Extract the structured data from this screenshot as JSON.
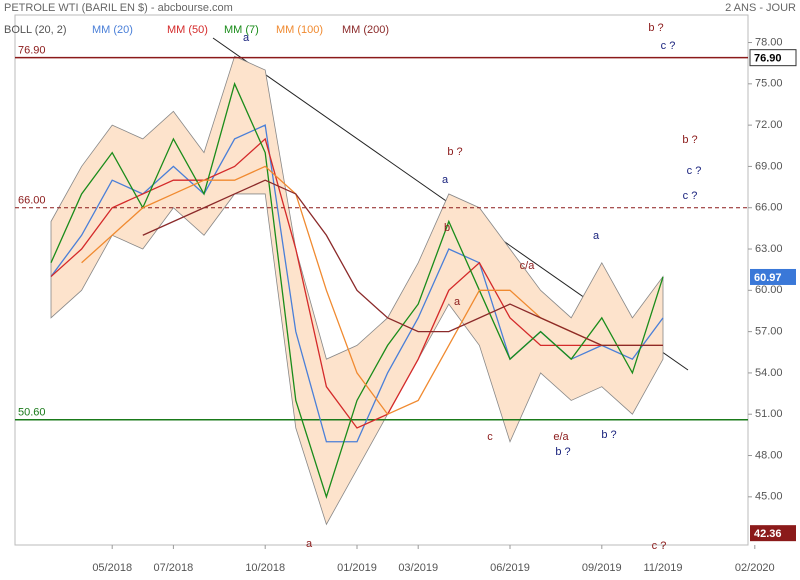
{
  "chart_data": {
    "type": "line",
    "title": "PETROLE WTI (BARIL EN $) - abcbourse.com",
    "subtitle": "2 ANS - JOUR",
    "categories": [
      null,
      null,
      "05/2018",
      null,
      "07/2018",
      null,
      null,
      "10/2018",
      null,
      null,
      "01/2019",
      null,
      "03/2019",
      null,
      null,
      "06/2019",
      null,
      null,
      "09/2019",
      null,
      "11/2019",
      null,
      null,
      "02/2020"
    ],
    "band": {
      "name": "BOLL (20, 2)",
      "color": "#fde3cc",
      "upper": [
        65,
        69,
        72,
        71,
        73,
        70,
        77,
        76,
        63,
        55,
        56,
        58,
        62,
        67,
        66,
        63,
        60,
        58,
        62,
        58,
        61,
        null,
        null,
        null
      ],
      "lower": [
        58,
        60,
        64,
        63,
        66,
        64,
        67,
        67,
        50,
        43,
        47,
        51,
        55,
        59,
        56,
        49,
        54,
        52,
        53,
        51,
        55,
        null,
        null,
        null
      ]
    },
    "series": [
      {
        "name": "MM (20)",
        "color": "#4a7fd8",
        "values": [
          61,
          64,
          68,
          67,
          69,
          67,
          71,
          72,
          57,
          49,
          49,
          54,
          58,
          63,
          62,
          55,
          57,
          55,
          56,
          55,
          58,
          null,
          null,
          null
        ]
      },
      {
        "name": "MM (50)",
        "color": "#d42a2a",
        "values": [
          61,
          63,
          66,
          67,
          68,
          68,
          69,
          71,
          63,
          53,
          50,
          51,
          55,
          60,
          62,
          58,
          56,
          56,
          56,
          56,
          56,
          null,
          null,
          null
        ]
      },
      {
        "name": "MM (7)",
        "color": "#1a8c1a",
        "values": [
          62,
          67,
          70,
          66,
          71,
          67,
          75,
          70,
          52,
          45,
          52,
          56,
          59,
          65,
          60,
          55,
          57,
          55,
          58,
          54,
          60.97,
          null,
          null,
          null
        ]
      },
      {
        "name": "MM (100)",
        "color": "#f08a30",
        "values": [
          null,
          62,
          64,
          66,
          67,
          68,
          68,
          69,
          67,
          60,
          54,
          51,
          52,
          56,
          60,
          60,
          58,
          57,
          56,
          56,
          56,
          null,
          null,
          null
        ]
      },
      {
        "name": "MM (200)",
        "color": "#8b2a2a",
        "values": [
          null,
          null,
          null,
          64,
          65,
          66,
          67,
          68,
          67,
          64,
          60,
          58,
          57,
          57,
          58,
          59,
          58,
          57,
          56,
          56,
          56,
          null,
          null,
          null
        ]
      }
    ],
    "ylim": [
      41.5,
      80
    ],
    "yticks": [
      {
        "value": 45,
        "label": "45.00"
      },
      {
        "value": 48,
        "label": "48.00"
      },
      {
        "value": 51,
        "label": "51.00"
      },
      {
        "value": 54,
        "label": "54.00"
      },
      {
        "value": 57,
        "label": "57.00"
      },
      {
        "value": 60,
        "label": "60.00"
      },
      {
        "value": 63,
        "label": "63.00"
      },
      {
        "value": 66,
        "label": "66.00"
      },
      {
        "value": 69,
        "label": "69.00"
      },
      {
        "value": 72,
        "label": "72.00"
      },
      {
        "value": 75,
        "label": "75.00"
      },
      {
        "value": 78,
        "label": "78.00"
      }
    ],
    "hlines": [
      {
        "value": 76.9,
        "label": "76.90",
        "color": "#8b1a1a",
        "dashed": false
      },
      {
        "value": 66.0,
        "label": "66.00",
        "color": "#8b1a1a",
        "dashed": true
      },
      {
        "value": 50.6,
        "label": "50.60",
        "color": "#1a7a1a",
        "dashed": false
      }
    ],
    "price_labels": [
      {
        "value": 60.97,
        "label": "60.97",
        "color": "#3a78d8"
      },
      {
        "value": 42.36,
        "label": "42.36",
        "color": "#8b1a1a"
      }
    ],
    "annotations": [
      "a",
      "b ?",
      "a",
      "b",
      "a",
      "c/a",
      "c",
      "e/a",
      "b ?",
      "a",
      "b ?",
      "b ?",
      "c ?",
      "b ?",
      "c ?",
      "c ?",
      "a",
      "c ?"
    ]
  }
}
